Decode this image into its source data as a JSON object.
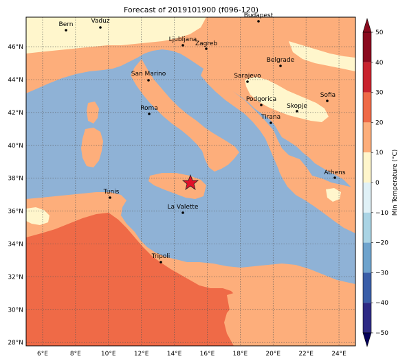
{
  "title": "Forecast of 2019101900 (f096-120)",
  "colorbar": {
    "label": "Min Temperature (°C)",
    "ticks": [
      "50",
      "40",
      "30",
      "20",
      "10",
      "0",
      "−10",
      "−20",
      "−30",
      "−40",
      "−50"
    ],
    "levels": [
      {
        "range": "40 to 50",
        "color": "#8a0a1e"
      },
      {
        "range": "30 to 40",
        "color": "#c8232e"
      },
      {
        "range": "20 to 30",
        "color": "#ef6a47"
      },
      {
        "range": "10 to 20",
        "color": "#fdae7b"
      },
      {
        "range": "0 to 10",
        "color": "#fff6cc"
      },
      {
        "range": "-10 to 0",
        "color": "#e0f1f7"
      },
      {
        "range": "-20 to -10",
        "color": "#aad4e5"
      },
      {
        "range": "-30 to -20",
        "color": "#6ea3cd"
      },
      {
        "range": "-40 to -30",
        "color": "#3a5ea8"
      },
      {
        "range": "-50 to -40",
        "color": "#2e2a85"
      }
    ]
  },
  "axes": {
    "lon_labels": [
      "6°E",
      "8°E",
      "10°E",
      "12°E",
      "14°E",
      "16°E",
      "18°E",
      "20°E",
      "22°E",
      "24°E"
    ],
    "lat_labels": [
      "46°N",
      "44°N",
      "42°N",
      "40°N",
      "38°N",
      "36°N",
      "34°N",
      "32°N",
      "30°N",
      "28°N"
    ],
    "lon_range": [
      5,
      25
    ],
    "lat_range": [
      27.8,
      47.8
    ],
    "gridlines": true
  },
  "cities": [
    {
      "name": "Bern"
    },
    {
      "name": "Vaduz"
    },
    {
      "name": "Budapest"
    },
    {
      "name": "Ljubljana"
    },
    {
      "name": "Zagreb"
    },
    {
      "name": "Belgrade"
    },
    {
      "name": "San Marino"
    },
    {
      "name": "Sarajevo"
    },
    {
      "name": "Sofia"
    },
    {
      "name": "Podgorica"
    },
    {
      "name": "Skopje"
    },
    {
      "name": "Roma"
    },
    {
      "name": "Tirana"
    },
    {
      "name": "Athens"
    },
    {
      "name": "Tunis"
    },
    {
      "name": "La Valette"
    },
    {
      "name": "Tripoli"
    }
  ],
  "marker": {
    "symbol": "star",
    "color": "#e0102a"
  },
  "colors": {
    "sea": "#8fb2d6",
    "warm": "#fdae7b",
    "hot": "#ef6a47",
    "cool": "#fff6cc"
  }
}
